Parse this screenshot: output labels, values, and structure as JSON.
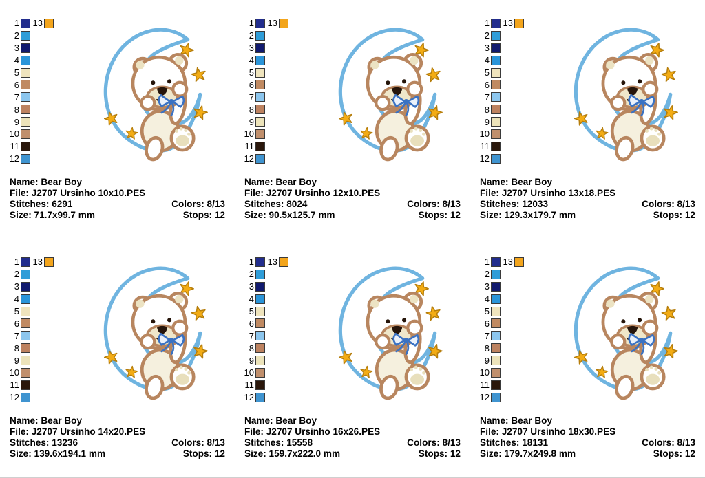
{
  "palette": {
    "swatches": [
      {
        "num": "1",
        "color": "#222d8d"
      },
      {
        "num": "2",
        "color": "#2f9dd8"
      },
      {
        "num": "3",
        "color": "#111a6e"
      },
      {
        "num": "4",
        "color": "#2b95d9"
      },
      {
        "num": "5",
        "color": "#efe4bd"
      },
      {
        "num": "6",
        "color": "#c08a62"
      },
      {
        "num": "7",
        "color": "#8cc6ee"
      },
      {
        "num": "8",
        "color": "#bd8260"
      },
      {
        "num": "9",
        "color": "#ece3ba"
      },
      {
        "num": "10",
        "color": "#c08f6c"
      },
      {
        "num": "11",
        "color": "#2a170b"
      },
      {
        "num": "12",
        "color": "#3f94d0"
      }
    ],
    "extra": {
      "num": "13",
      "color": "#f3a51c"
    }
  },
  "labels": {
    "name": "Name:",
    "file": "File:",
    "stitches": "Stitches:",
    "colors": "Colors:",
    "size": "Size:",
    "stops": "Stops:"
  },
  "design": {
    "motif": "teddy-bear-hanging-on-crescent-moon-with-stars",
    "colors": {
      "moon_outline": "#6fb4e0",
      "bear_outline": "#b8865f",
      "bear_fill": "#ffffff",
      "body_fill": "#f5f0de",
      "cream": "#ece3c3",
      "pad_cream": "#e8dfbc",
      "star_fill": "#f3ac14",
      "star_outline": "#b67e0c",
      "bow_blue": "#3a72c3",
      "features_brown": "#26150a"
    }
  },
  "panels": [
    {
      "name": "Bear Boy",
      "file": "J2707 Ursinho 10x10.PES",
      "stitches": "6291",
      "colors": "8/13",
      "size": "71.7x99.7 mm",
      "stops": "12"
    },
    {
      "name": "Bear Boy",
      "file": "J2707 Ursinho 12x10.PES",
      "stitches": "8024",
      "colors": "8/13",
      "size": "90.5x125.7 mm",
      "stops": "12"
    },
    {
      "name": "Bear Boy",
      "file": "J2707 Ursinho 13x18.PES",
      "stitches": "12033",
      "colors": "8/13",
      "size": "129.3x179.7 mm",
      "stops": "12"
    },
    {
      "name": "Bear Boy",
      "file": "J2707 Ursinho 14x20.PES",
      "stitches": "13236",
      "colors": "8/13",
      "size": "139.6x194.1 mm",
      "stops": "12"
    },
    {
      "name": "Bear Boy",
      "file": "J2707 Ursinho 16x26.PES",
      "stitches": "15558",
      "colors": "8/13",
      "size": "159.7x222.0 mm",
      "stops": "12"
    },
    {
      "name": "Bear Boy",
      "file": "J2707 Ursinho 18x30.PES",
      "stitches": "18131",
      "colors": "8/13",
      "size": "179.7x249.8 mm",
      "stops": "12"
    }
  ]
}
